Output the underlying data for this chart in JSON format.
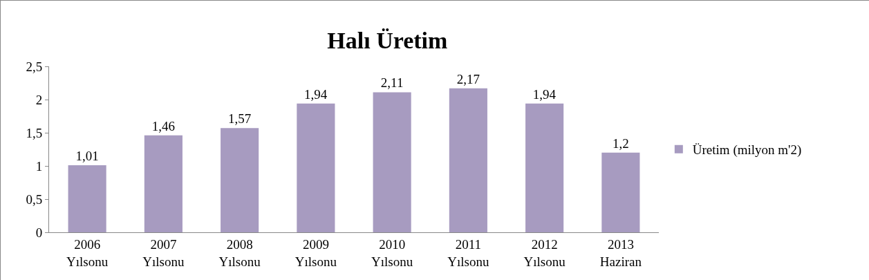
{
  "chart_data": {
    "type": "bar",
    "title": "Halı Üretim",
    "categories": [
      "2006 Yılsonu",
      "2007 Yılsonu",
      "2008 Yılsonu",
      "2009 Yılsonu",
      "2010 Yılsonu",
      "2011 Yılsonu",
      "2012 Yılsonu",
      "2013 Haziran"
    ],
    "series": [
      {
        "name": "Üretim (milyon m'2)",
        "color": "#a79bc0",
        "values": [
          1.01,
          1.46,
          1.57,
          1.94,
          2.11,
          2.17,
          1.94,
          1.2
        ],
        "value_labels": [
          "1,01",
          "1,46",
          "1,57",
          "1,94",
          "2,11",
          "2,17",
          "1,94",
          "1,2"
        ]
      }
    ],
    "ylim": [
      0,
      2.5
    ],
    "yticks": [
      0,
      {
        "value": 0.5,
        "label": "0,5"
      },
      1,
      {
        "value": 1.5,
        "label": "1,5"
      },
      2,
      {
        "value": 2.5,
        "label": "2,5"
      }
    ],
    "grid": false,
    "legend": "right"
  }
}
